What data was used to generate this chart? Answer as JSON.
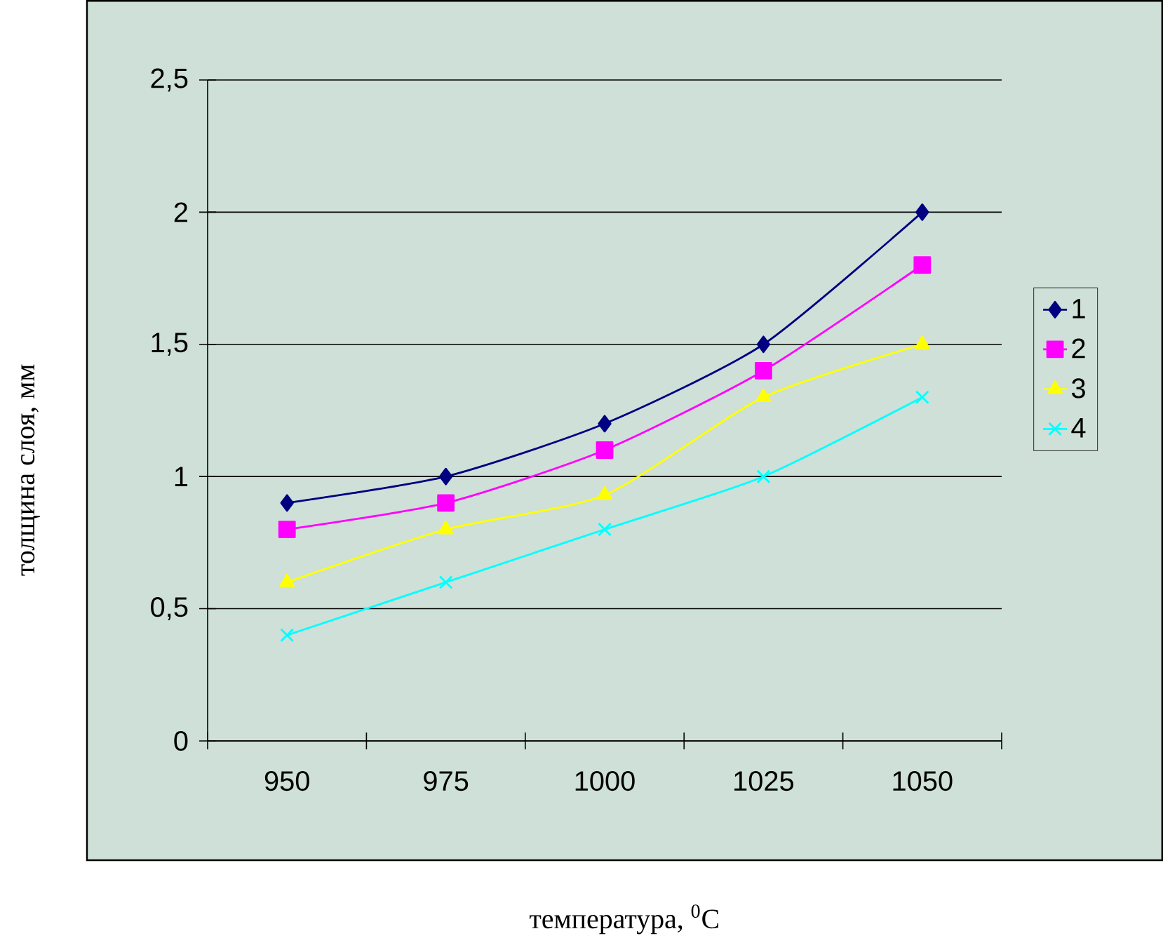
{
  "chart_data": {
    "type": "line",
    "xlabel": "температура, $^{0}$C",
    "ylabel": "толщина слоя, мм",
    "categories": [
      "950",
      "975",
      "1000",
      "1025",
      "1050"
    ],
    "ylim": [
      0,
      2.5
    ],
    "yticks": [
      0,
      {
        "value": 0.5,
        "label": "0,5"
      },
      1,
      {
        "value": 1.5,
        "label": "1,5"
      },
      2,
      {
        "value": 2.5,
        "label": "2,5"
      }
    ],
    "grid": "y",
    "legend": "right",
    "series": [
      {
        "name": "1",
        "color": "#000080",
        "marker": "diamond",
        "values": [
          0.9,
          1.0,
          1.2,
          1.5,
          2.0
        ]
      },
      {
        "name": "2",
        "color": "#ff00ff",
        "marker": "square",
        "values": [
          0.8,
          0.9,
          1.1,
          1.4,
          1.8
        ]
      },
      {
        "name": "3",
        "color": "#ffff00",
        "marker": "triangle",
        "values": [
          0.6,
          0.8,
          0.93,
          1.3,
          1.5
        ]
      },
      {
        "name": "4",
        "color": "#00ffff",
        "marker": "cross",
        "values": [
          0.4,
          0.6,
          0.8,
          1.0,
          1.3
        ]
      }
    ]
  }
}
